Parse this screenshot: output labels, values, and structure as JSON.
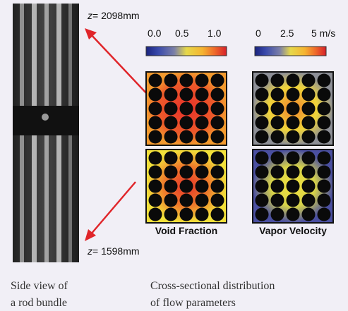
{
  "photo": {
    "top_label": {
      "variable": "z",
      "value": "= 2098mm"
    },
    "bottom_label": {
      "variable": "z",
      "value": "= 1598mm"
    },
    "caption": [
      "Side view of",
      "a rod bundle"
    ]
  },
  "void_fraction": {
    "ticks": [
      "0.0",
      "0.5",
      "1.0"
    ],
    "label": "Void Fraction"
  },
  "vapor_velocity": {
    "ticks": [
      "0",
      "2.5",
      "5 m/s"
    ],
    "label": "Vapor Velocity"
  },
  "caption": [
    "Cross-sectional distribution",
    "of flow parameters"
  ]
}
